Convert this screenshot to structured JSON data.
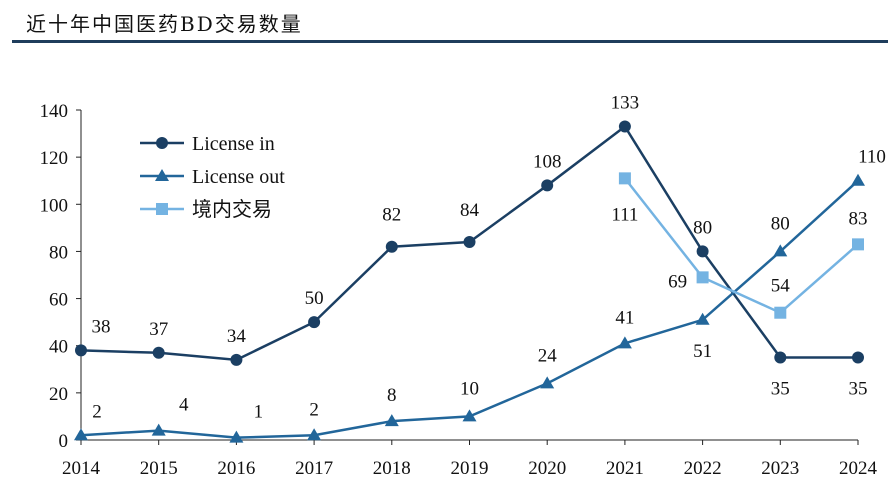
{
  "title": "近十年中国医药BD交易数量",
  "chart_data": {
    "type": "line",
    "title": "近十年中国医药BD交易数量",
    "x": [
      "2014",
      "2015",
      "2016",
      "2017",
      "2018",
      "2019",
      "2020",
      "2021",
      "2022",
      "2023",
      "2024"
    ],
    "ylim": [
      0,
      140
    ],
    "yticks": [
      0,
      20,
      40,
      60,
      80,
      100,
      120,
      140
    ],
    "grid": false,
    "legend": "top-left",
    "series": [
      {
        "name": "License in",
        "marker": "circle",
        "color": "#1b3f63",
        "values": [
          38,
          37,
          34,
          50,
          82,
          84,
          108,
          133,
          80,
          35,
          35
        ]
      },
      {
        "name": "License out",
        "marker": "triangle",
        "color": "#22669a",
        "values": [
          2,
          4,
          1,
          2,
          8,
          10,
          24,
          41,
          51,
          80,
          110
        ]
      },
      {
        "name": "境内交易",
        "marker": "square",
        "color": "#74b3e2",
        "values": [
          null,
          null,
          null,
          null,
          null,
          null,
          null,
          111,
          69,
          54,
          83
        ]
      }
    ]
  }
}
